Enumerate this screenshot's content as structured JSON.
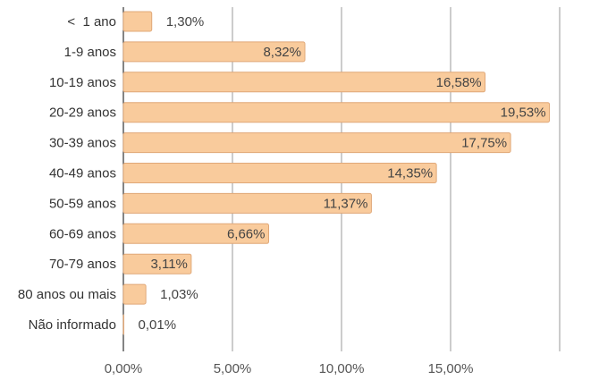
{
  "chart_data": {
    "type": "bar",
    "orientation": "horizontal",
    "categories": [
      "<  1 ano",
      "1-9 anos",
      "10-19 anos",
      "20-29 anos",
      "30-39 anos",
      "40-49 anos",
      "50-59 anos",
      "60-69 anos",
      "70-79 anos",
      "80 anos ou mais",
      "Não informado"
    ],
    "values": [
      1.3,
      8.32,
      16.58,
      19.53,
      17.75,
      14.35,
      11.37,
      6.66,
      3.11,
      1.03,
      0.01
    ],
    "value_labels": [
      "1,30%",
      "8,32%",
      "16,58%",
      "19,53%",
      "17,75%",
      "14,35%",
      "11,37%",
      "6,66%",
      "3,11%",
      "1,03%",
      "0,01%"
    ],
    "xticks": [
      0,
      5,
      10,
      15,
      20
    ],
    "xtick_labels": [
      "0,00%",
      "5,00%",
      "10,00%",
      "15,00%",
      ""
    ],
    "xlim": [
      0,
      20
    ],
    "grid": true,
    "bar_color": "#f9cb9c",
    "bar_stroke": "#e0a878",
    "gridline_color": "#999999",
    "title": "",
    "xlabel": "",
    "ylabel": ""
  }
}
